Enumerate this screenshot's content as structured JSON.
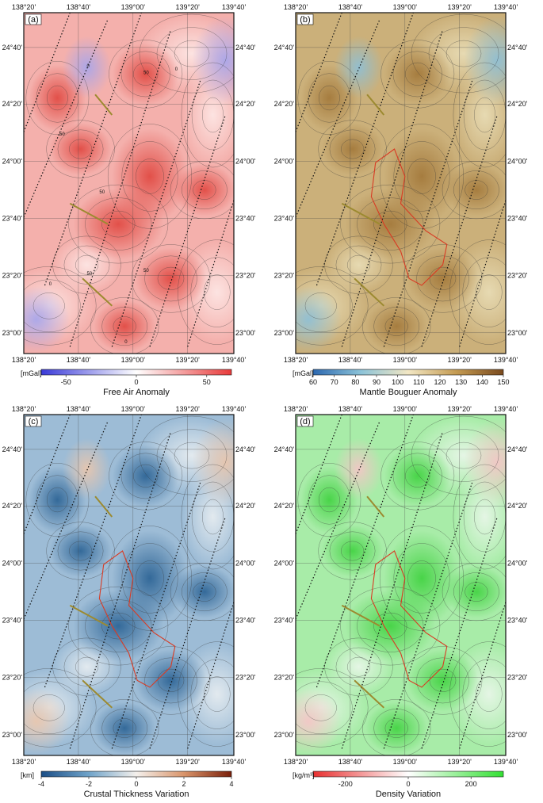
{
  "panels": [
    {
      "id": "a",
      "label": "(a)",
      "colorbar": {
        "unit": "[mGal]",
        "title": "Free Air Anomaly",
        "ticks": [
          "-50",
          "0",
          "50"
        ],
        "colors": [
          "#3a3ad8",
          "#ffffff",
          "#e83a3a"
        ]
      },
      "contour_labels": [
        "0",
        "50",
        "50",
        "50",
        "50",
        "50",
        "0",
        "0",
        "0"
      ],
      "fill": {
        "base": "#f4b0ac",
        "dark": "#e14b44",
        "light": "#fde6e4",
        "negative": "#a9a6ea"
      }
    },
    {
      "id": "b",
      "label": "(b)",
      "colorbar": {
        "unit": "[mGal]",
        "title": "Mantle Bouguer Anomaly",
        "ticks": [
          "60",
          "70",
          "80",
          "90",
          "100",
          "110",
          "120",
          "130",
          "140",
          "150"
        ],
        "colors": [
          "#2c68b0",
          "#8cc3d8",
          "#f2e7c4",
          "#c59c53",
          "#7a4a1e"
        ]
      },
      "fill": {
        "base": "#cbb07a",
        "dark": "#a47a3c",
        "light": "#e8dcb5",
        "negative": "#8fbfd4"
      }
    },
    {
      "id": "c",
      "label": "(c)",
      "colorbar": {
        "unit": "[km]",
        "title": "Crustal Thickness Variation",
        "ticks": [
          "-4",
          "-2",
          "0",
          "2",
          "4"
        ],
        "colors": [
          "#1b4e86",
          "#6fa3c9",
          "#f4f0ec",
          "#d9946a",
          "#7a1f0a"
        ]
      },
      "fill": {
        "base": "#9dbcd6",
        "dark": "#2e6596",
        "light": "#e6ecf0",
        "negative": "#e8c6ae"
      }
    },
    {
      "id": "d",
      "label": "(d)",
      "colorbar": {
        "unit": "[kg/m³]",
        "title": "Density Variation",
        "ticks": [
          "-200",
          "0",
          "200"
        ],
        "colors": [
          "#e83030",
          "#ffffff",
          "#33e033"
        ]
      },
      "fill": {
        "base": "#a8eca8",
        "dark": "#44d344",
        "light": "#e8f6e8",
        "negative": "#f3c6c6"
      }
    }
  ],
  "axes": {
    "top_ticks": [
      "138°20'",
      "138°40'",
      "139°00'",
      "139°20'",
      "139°40'"
    ],
    "bottom_ticks": [
      "138°20'",
      "138°40'",
      "139°00'",
      "139°20'",
      "139°40'"
    ],
    "lat_ticks": [
      "24°40'",
      "24°20'",
      "24°00'",
      "23°40'",
      "23°20'",
      "23°00'"
    ]
  }
}
